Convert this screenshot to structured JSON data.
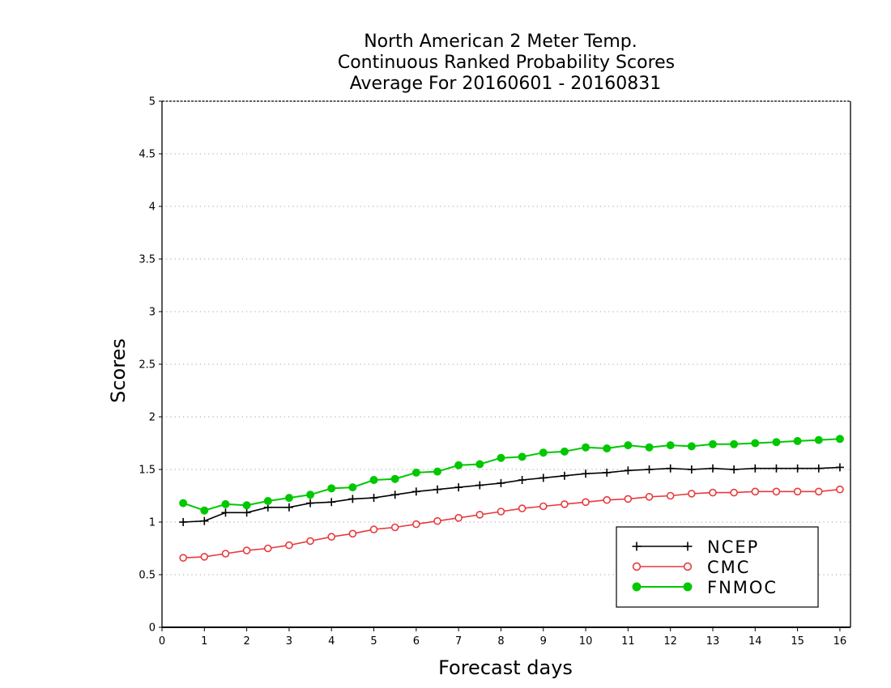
{
  "chart_data": {
    "type": "line",
    "title": [
      "North American 2 Meter Temp.",
      "Continuous Ranked Probability Scores",
      "Average For 20160601 - 20160831"
    ],
    "xlabel": "Forecast days",
    "ylabel": "Scores",
    "xlim": [
      0,
      16.25
    ],
    "ylim": [
      0,
      5
    ],
    "xticks": [
      0,
      1,
      2,
      3,
      4,
      5,
      6,
      7,
      8,
      9,
      10,
      11,
      12,
      13,
      14,
      15,
      16
    ],
    "xtick_labels": [
      "0",
      "1",
      "2",
      "3",
      "4",
      "5",
      "6",
      "7",
      "8",
      "9",
      "10",
      "11",
      "12",
      "13",
      "14",
      "15",
      "16"
    ],
    "yticks": [
      0,
      0.5,
      1,
      1.5,
      2,
      2.5,
      3,
      3.5,
      4,
      4.5,
      5
    ],
    "ytick_labels": [
      "0",
      "0.5",
      "1",
      "1.5",
      "2",
      "2.5",
      "3",
      "3.5",
      "4",
      "4.5",
      "5"
    ],
    "grid": "horizontal dotted",
    "legend_position": "bottom-right",
    "x": [
      0.5,
      1.0,
      1.5,
      2.0,
      2.5,
      3.0,
      3.5,
      4.0,
      4.5,
      5.0,
      5.5,
      6.0,
      6.5,
      7.0,
      7.5,
      8.0,
      8.5,
      9.0,
      9.5,
      10.0,
      10.5,
      11.0,
      11.5,
      12.0,
      12.5,
      13.0,
      13.5,
      14.0,
      14.5,
      15.0,
      15.5,
      16.0
    ],
    "series": [
      {
        "name": "NCEP",
        "color": "#000000",
        "marker": "plus",
        "values": [
          1.0,
          1.01,
          1.09,
          1.09,
          1.14,
          1.14,
          1.18,
          1.19,
          1.22,
          1.23,
          1.26,
          1.29,
          1.31,
          1.33,
          1.35,
          1.37,
          1.4,
          1.42,
          1.44,
          1.46,
          1.47,
          1.49,
          1.5,
          1.51,
          1.5,
          1.51,
          1.5,
          1.51,
          1.51,
          1.51,
          1.51,
          1.52
        ]
      },
      {
        "name": "CMC",
        "color": "#e8393c",
        "marker": "open-circle",
        "values": [
          0.66,
          0.67,
          0.7,
          0.73,
          0.75,
          0.78,
          0.82,
          0.86,
          0.89,
          0.93,
          0.95,
          0.98,
          1.01,
          1.04,
          1.07,
          1.1,
          1.13,
          1.15,
          1.17,
          1.19,
          1.21,
          1.22,
          1.24,
          1.25,
          1.27,
          1.28,
          1.28,
          1.29,
          1.29,
          1.29,
          1.29,
          1.31
        ]
      },
      {
        "name": "FNMOC",
        "color": "#00c800",
        "marker": "filled-circle",
        "values": [
          1.18,
          1.11,
          1.17,
          1.16,
          1.2,
          1.23,
          1.26,
          1.32,
          1.33,
          1.4,
          1.41,
          1.47,
          1.48,
          1.54,
          1.55,
          1.61,
          1.62,
          1.66,
          1.67,
          1.71,
          1.7,
          1.73,
          1.71,
          1.73,
          1.72,
          1.74,
          1.74,
          1.75,
          1.76,
          1.77,
          1.78,
          1.79
        ]
      }
    ]
  }
}
